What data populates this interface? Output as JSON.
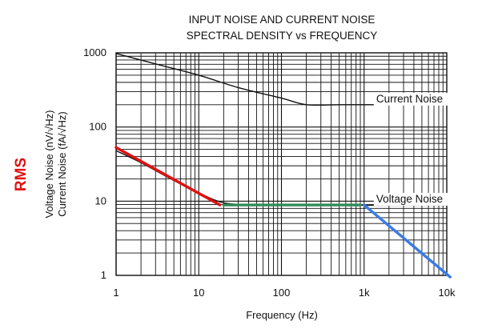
{
  "chart_data": {
    "type": "line",
    "title_lines": [
      "INPUT NOISE AND CURRENT NOISE",
      "SPECTRAL DENSITY vs FREQUENCY"
    ],
    "xlabel": "Frequency (Hz)",
    "ylabel_lines": [
      "Voltage Noise (nV/√Hz)",
      "Current Noise (fA/√Hz)"
    ],
    "side_label": "RMS",
    "side_label_color": "#e01010",
    "x_scale": "log",
    "y_scale": "log",
    "xlim": [
      1,
      10000
    ],
    "ylim": [
      1,
      1000
    ],
    "grid": true,
    "x_ticks": [
      {
        "value": 1,
        "label": "1"
      },
      {
        "value": 10,
        "label": "10"
      },
      {
        "value": 100,
        "label": "100"
      },
      {
        "value": 1000,
        "label": "1k"
      },
      {
        "value": 10000,
        "label": "10k"
      }
    ],
    "y_ticks": [
      {
        "value": 1,
        "label": "1"
      },
      {
        "value": 10,
        "label": "10"
      },
      {
        "value": 100,
        "label": "100"
      },
      {
        "value": 1000,
        "label": "1000"
      }
    ],
    "series": [
      {
        "name": "Current Noise",
        "color": "#111111",
        "points": [
          [
            1,
            980
          ],
          [
            3,
            710
          ],
          [
            10,
            500
          ],
          [
            30,
            340
          ],
          [
            100,
            245
          ],
          [
            200,
            200
          ],
          [
            500,
            200
          ],
          [
            1000,
            200
          ],
          [
            10000,
            200
          ]
        ]
      },
      {
        "name": "Voltage Noise",
        "color": "#111111",
        "points": [
          [
            1,
            48
          ],
          [
            2,
            33
          ],
          [
            5,
            19
          ],
          [
            10,
            13
          ],
          [
            20,
            9.5
          ],
          [
            50,
            8.9
          ],
          [
            100,
            8.8
          ],
          [
            1000,
            8.8
          ],
          [
            10000,
            8.8
          ]
        ]
      }
    ],
    "overlays": [
      {
        "color": "#e01010",
        "points": [
          [
            1,
            53
          ],
          [
            18,
            8.9
          ]
        ]
      },
      {
        "color": "#2e8b57",
        "points": [
          [
            20,
            8.9
          ],
          [
            900,
            8.9
          ]
        ]
      },
      {
        "color": "#3a7be8",
        "points": [
          [
            1000,
            8.9
          ],
          [
            11000,
            0.95
          ]
        ]
      }
    ],
    "annotations": [
      {
        "text": "Current Noise",
        "x": 1400,
        "y": 215
      },
      {
        "text": "Voltage Noise",
        "x": 1400,
        "y": 9.6
      }
    ]
  }
}
